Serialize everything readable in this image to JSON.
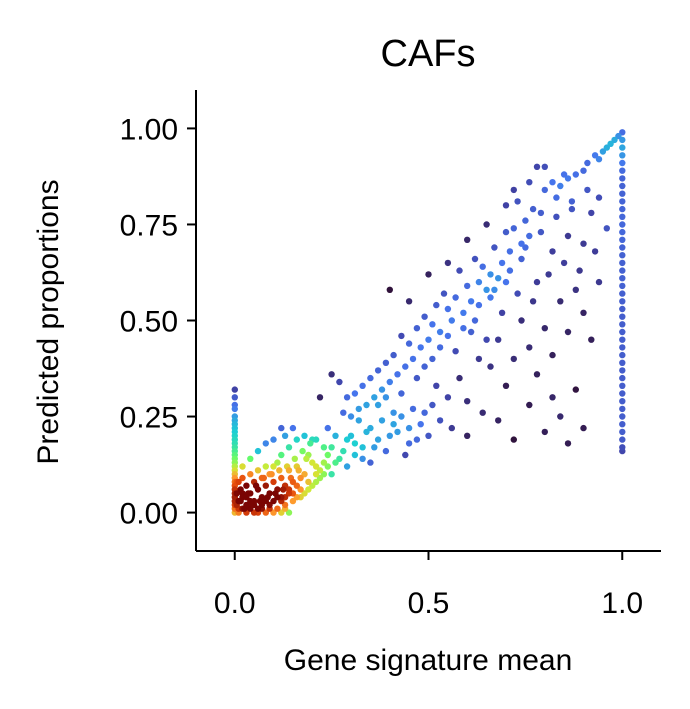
{
  "chart_data": {
    "type": "scatter",
    "title": "CAFs",
    "xlabel": "Gene signature mean",
    "ylabel": "Predicted proportions",
    "xlim": [
      -0.1,
      1.1
    ],
    "ylim": [
      -0.1,
      1.1
    ],
    "xticks": [
      {
        "value": 0.0,
        "label": "0.0"
      },
      {
        "value": 0.5,
        "label": "0.5"
      },
      {
        "value": 1.0,
        "label": "1.0"
      }
    ],
    "yticks": [
      {
        "value": 0.0,
        "label": "0.00"
      },
      {
        "value": 0.25,
        "label": "0.25"
      },
      {
        "value": 0.5,
        "label": "0.50"
      },
      {
        "value": 0.75,
        "label": "0.75"
      },
      {
        "value": 1.0,
        "label": "1.00"
      }
    ],
    "grid": false,
    "legend": "none",
    "color_encoding": "point density (turbo colormap: dark purple = low, dark red = high)",
    "colormap": [
      "#30123b",
      "#4145ab",
      "#4675ed",
      "#1bcfd4",
      "#62fc6b",
      "#d2e935",
      "#fe9b2d",
      "#e4460a",
      "#7a0403"
    ],
    "points": [
      [
        0.95,
        0.94
      ],
      [
        0.96,
        0.95
      ],
      [
        0.97,
        0.96
      ],
      [
        0.98,
        0.97
      ],
      [
        0.99,
        0.98
      ],
      [
        0.93,
        0.93
      ],
      [
        0.94,
        0.92
      ],
      [
        0.91,
        0.91
      ],
      [
        0.9,
        0.89
      ],
      [
        0.88,
        0.88
      ],
      [
        0.86,
        0.87
      ],
      [
        0.84,
        0.85
      ],
      [
        0.85,
        0.88
      ],
      [
        0.83,
        0.82
      ],
      [
        0.82,
        0.86
      ],
      [
        0.87,
        0.81
      ],
      [
        0.8,
        0.84
      ],
      [
        0.79,
        0.78
      ],
      [
        0.78,
        0.9
      ],
      [
        0.77,
        0.79
      ],
      [
        0.76,
        0.72
      ],
      [
        0.75,
        0.76
      ],
      [
        0.74,
        0.7
      ],
      [
        0.73,
        0.81
      ],
      [
        0.72,
        0.74
      ],
      [
        0.71,
        0.68
      ],
      [
        0.7,
        0.73
      ],
      [
        0.69,
        0.65
      ],
      [
        0.68,
        0.61
      ],
      [
        0.67,
        0.69
      ],
      [
        0.66,
        0.62
      ],
      [
        0.65,
        0.58
      ],
      [
        0.64,
        0.64
      ],
      [
        0.63,
        0.6
      ],
      [
        0.62,
        0.66
      ],
      [
        0.61,
        0.55
      ],
      [
        0.6,
        0.59
      ],
      [
        0.59,
        0.52
      ],
      [
        0.58,
        0.63
      ],
      [
        0.57,
        0.56
      ],
      [
        0.56,
        0.5
      ],
      [
        0.55,
        0.53
      ],
      [
        0.54,
        0.57
      ],
      [
        0.53,
        0.47
      ],
      [
        0.52,
        0.54
      ],
      [
        0.51,
        0.49
      ],
      [
        0.5,
        0.45
      ],
      [
        0.49,
        0.51
      ],
      [
        0.48,
        0.43
      ],
      [
        0.47,
        0.48
      ],
      [
        0.46,
        0.4
      ],
      [
        0.45,
        0.44
      ],
      [
        0.44,
        0.38
      ],
      [
        0.43,
        0.46
      ],
      [
        0.42,
        0.36
      ],
      [
        0.41,
        0.41
      ],
      [
        0.4,
        0.34
      ],
      [
        0.39,
        0.39
      ],
      [
        0.38,
        0.32
      ],
      [
        0.37,
        0.37
      ],
      [
        0.36,
        0.3
      ],
      [
        0.35,
        0.35
      ],
      [
        0.34,
        0.28
      ],
      [
        0.33,
        0.33
      ],
      [
        0.32,
        0.27
      ],
      [
        0.31,
        0.31
      ],
      [
        0.3,
        0.25
      ],
      [
        0.29,
        0.3
      ],
      [
        0.28,
        0.26
      ],
      [
        0.27,
        0.34
      ],
      [
        0.26,
        0.2
      ],
      [
        0.25,
        0.36
      ],
      [
        0.24,
        0.22
      ],
      [
        0.23,
        0.17
      ],
      [
        0.22,
        0.3
      ],
      [
        0.21,
        0.19
      ],
      [
        0.4,
        0.58
      ],
      [
        0.45,
        0.55
      ],
      [
        0.5,
        0.62
      ],
      [
        0.55,
        0.65
      ],
      [
        0.6,
        0.71
      ],
      [
        0.65,
        0.75
      ],
      [
        0.7,
        0.8
      ],
      [
        0.72,
        0.84
      ],
      [
        0.76,
        0.86
      ],
      [
        0.8,
        0.9
      ],
      [
        0.52,
        0.33
      ],
      [
        0.55,
        0.3
      ],
      [
        0.58,
        0.35
      ],
      [
        0.6,
        0.29
      ],
      [
        0.63,
        0.4
      ],
      [
        0.66,
        0.38
      ],
      [
        0.68,
        0.45
      ],
      [
        0.7,
        0.33
      ],
      [
        0.72,
        0.4
      ],
      [
        0.74,
        0.5
      ],
      [
        0.76,
        0.43
      ],
      [
        0.78,
        0.36
      ],
      [
        0.8,
        0.48
      ],
      [
        0.82,
        0.41
      ],
      [
        0.84,
        0.55
      ],
      [
        0.86,
        0.47
      ],
      [
        0.88,
        0.58
      ],
      [
        0.9,
        0.52
      ],
      [
        0.92,
        0.45
      ],
      [
        0.94,
        0.6
      ],
      [
        0.5,
        0.2
      ],
      [
        0.48,
        0.23
      ],
      [
        0.45,
        0.18
      ],
      [
        0.42,
        0.21
      ],
      [
        0.46,
        0.27
      ],
      [
        0.44,
        0.15
      ],
      [
        0.4,
        0.2
      ],
      [
        0.38,
        0.24
      ],
      [
        0.36,
        0.17
      ],
      [
        0.34,
        0.21
      ],
      [
        0.33,
        0.14
      ],
      [
        0.31,
        0.18
      ],
      [
        0.29,
        0.12
      ],
      [
        0.28,
        0.16
      ],
      [
        0.26,
        0.13
      ],
      [
        0.25,
        0.1
      ],
      [
        0.24,
        0.15
      ],
      [
        0.22,
        0.11
      ],
      [
        0.21,
        0.08
      ],
      [
        0.2,
        0.13
      ],
      [
        0.19,
        0.06
      ],
      [
        0.18,
        0.1
      ],
      [
        0.17,
        0.04
      ],
      [
        0.16,
        0.07
      ],
      [
        0.15,
        0.03
      ],
      [
        0.14,
        0.05
      ],
      [
        0.13,
        0.02
      ],
      [
        0.12,
        0.04
      ],
      [
        0.56,
        0.22
      ],
      [
        0.6,
        0.2
      ],
      [
        0.64,
        0.26
      ],
      [
        0.68,
        0.24
      ],
      [
        0.72,
        0.19
      ],
      [
        0.76,
        0.28
      ],
      [
        0.8,
        0.21
      ],
      [
        0.84,
        0.25
      ],
      [
        0.88,
        0.32
      ],
      [
        0.9,
        0.22
      ],
      [
        0.86,
        0.18
      ],
      [
        0.82,
        0.3
      ],
      [
        0.62,
        0.5
      ],
      [
        0.66,
        0.56
      ],
      [
        0.7,
        0.6
      ],
      [
        0.74,
        0.66
      ],
      [
        0.78,
        0.6
      ],
      [
        0.82,
        0.68
      ],
      [
        0.86,
        0.72
      ],
      [
        0.9,
        0.7
      ],
      [
        0.92,
        0.78
      ],
      [
        0.94,
        0.82
      ],
      [
        0.96,
        0.74
      ],
      [
        0.57,
        0.42
      ],
      [
        0.61,
        0.47
      ],
      [
        0.65,
        0.45
      ],
      [
        0.69,
        0.52
      ],
      [
        0.73,
        0.57
      ],
      [
        0.77,
        0.55
      ],
      [
        0.81,
        0.62
      ],
      [
        0.85,
        0.65
      ],
      [
        0.89,
        0.63
      ],
      [
        0.93,
        0.68
      ],
      [
        0.37,
        0.28
      ],
      [
        0.39,
        0.3
      ],
      [
        0.41,
        0.26
      ],
      [
        0.43,
        0.31
      ],
      [
        0.47,
        0.35
      ],
      [
        0.49,
        0.38
      ],
      [
        0.51,
        0.4
      ],
      [
        0.53,
        0.43
      ],
      [
        0.55,
        0.46
      ],
      [
        0.59,
        0.48
      ],
      [
        0.63,
        0.54
      ],
      [
        0.67,
        0.58
      ],
      [
        0.71,
        0.63
      ],
      [
        0.75,
        0.69
      ],
      [
        0.79,
        0.73
      ],
      [
        0.83,
        0.77
      ],
      [
        0.87,
        0.79
      ],
      [
        0.91,
        0.84
      ],
      [
        0.3,
        0.2
      ],
      [
        0.32,
        0.24
      ],
      [
        0.35,
        0.22
      ],
      [
        0.37,
        0.19
      ],
      [
        0.39,
        0.16
      ],
      [
        0.41,
        0.23
      ],
      [
        0.43,
        0.25
      ],
      [
        0.45,
        0.22
      ],
      [
        0.47,
        0.19
      ],
      [
        0.49,
        0.26
      ],
      [
        0.51,
        0.28
      ],
      [
        0.53,
        0.24
      ],
      [
        0.25,
        0.17
      ],
      [
        0.27,
        0.14
      ],
      [
        0.29,
        0.19
      ],
      [
        0.31,
        0.15
      ],
      [
        0.33,
        0.17
      ],
      [
        0.35,
        0.13
      ],
      [
        0.23,
        0.1
      ],
      [
        0.21,
        0.12
      ],
      [
        0.19,
        0.15
      ],
      [
        0.17,
        0.09
      ],
      [
        0.16,
        0.12
      ],
      [
        0.15,
        0.08
      ],
      [
        0.14,
        0.11
      ],
      [
        0.13,
        0.07
      ],
      [
        0.12,
        0.09
      ],
      [
        0.11,
        0.06
      ],
      [
        0.1,
        0.08
      ],
      [
        0.09,
        0.05
      ],
      [
        0.08,
        0.07
      ],
      [
        0.07,
        0.04
      ],
      [
        0.06,
        0.06
      ],
      [
        0.05,
        0.03
      ],
      [
        0.04,
        0.05
      ],
      [
        0.03,
        0.02
      ],
      [
        0.02,
        0.04
      ],
      [
        0.01,
        0.01
      ],
      [
        0.015,
        0.03
      ],
      [
        0.025,
        0.01
      ],
      [
        0.035,
        0.05
      ],
      [
        0.045,
        0.02
      ],
      [
        0.055,
        0.07
      ],
      [
        0.065,
        0.03
      ],
      [
        0.075,
        0.09
      ],
      [
        0.085,
        0.04
      ],
      [
        0.095,
        0.1
      ],
      [
        0.105,
        0.05
      ],
      [
        0.115,
        0.11
      ],
      [
        0.125,
        0.06
      ],
      [
        0.135,
        0.12
      ],
      [
        0.145,
        0.09
      ],
      [
        0.155,
        0.14
      ],
      [
        0.165,
        0.11
      ],
      [
        0.175,
        0.16
      ],
      [
        0.185,
        0.14
      ],
      [
        0.195,
        0.18
      ],
      [
        0.2,
        0.19
      ],
      [
        0.18,
        0.2
      ],
      [
        0.16,
        0.19
      ],
      [
        0.14,
        0.17
      ],
      [
        0.12,
        0.15
      ],
      [
        0.11,
        0.13
      ],
      [
        0.1,
        0.12
      ],
      [
        0.09,
        0.1
      ],
      [
        0.08,
        0.12
      ],
      [
        0.07,
        0.09
      ],
      [
        0.06,
        0.11
      ],
      [
        0.05,
        0.08
      ],
      [
        0.04,
        0.1
      ],
      [
        0.03,
        0.07
      ],
      [
        0.02,
        0.09
      ],
      [
        0.015,
        0.06
      ],
      [
        0.01,
        0.08
      ],
      [
        0.02,
        0.05
      ],
      [
        0.03,
        0.04
      ],
      [
        0.04,
        0.03
      ],
      [
        0.05,
        0.02
      ],
      [
        0.06,
        0.01
      ],
      [
        0.07,
        0.02
      ],
      [
        0.08,
        0.03
      ],
      [
        0.09,
        0.02
      ],
      [
        0.1,
        0.03
      ],
      [
        0.11,
        0.04
      ],
      [
        0.12,
        0.03
      ],
      [
        0.13,
        0.04
      ],
      [
        0.14,
        0.06
      ],
      [
        0.15,
        0.05
      ],
      [
        0.16,
        0.04
      ],
      [
        0.17,
        0.06
      ],
      [
        0.18,
        0.05
      ],
      [
        0.19,
        0.08
      ],
      [
        0.2,
        0.07
      ],
      [
        0.21,
        0.1
      ],
      [
        0.22,
        0.09
      ],
      [
        0.23,
        0.13
      ],
      [
        0.24,
        0.12
      ],
      [
        0.1,
        0.19
      ],
      [
        0.12,
        0.22
      ],
      [
        0.06,
        0.16
      ],
      [
        0.08,
        0.18
      ],
      [
        0.04,
        0.14
      ],
      [
        0.02,
        0.12
      ],
      [
        0.13,
        0.2
      ],
      [
        0.15,
        0.22
      ],
      [
        0.0,
        0.32
      ],
      [
        0.0,
        0.3
      ],
      [
        0.0,
        0.28
      ],
      [
        0.0,
        0.27
      ],
      [
        0.0,
        0.25
      ],
      [
        0.0,
        0.24
      ],
      [
        0.0,
        0.23
      ],
      [
        0.0,
        0.22
      ],
      [
        0.0,
        0.21
      ],
      [
        0.0,
        0.2
      ],
      [
        0.0,
        0.19
      ],
      [
        0.0,
        0.18
      ],
      [
        0.0,
        0.17
      ],
      [
        0.0,
        0.16
      ],
      [
        0.0,
        0.15
      ],
      [
        0.0,
        0.14
      ],
      [
        0.0,
        0.13
      ],
      [
        0.0,
        0.12
      ],
      [
        0.0,
        0.11
      ],
      [
        0.0,
        0.1
      ],
      [
        0.0,
        0.09
      ],
      [
        0.0,
        0.08
      ],
      [
        0.0,
        0.07
      ],
      [
        0.0,
        0.06
      ],
      [
        0.0,
        0.05
      ],
      [
        0.0,
        0.04
      ],
      [
        0.0,
        0.03
      ],
      [
        0.0,
        0.02
      ],
      [
        0.0,
        0.01
      ],
      [
        0.0,
        0.0
      ],
      [
        0.005,
        0.02
      ],
      [
        0.005,
        0.05
      ],
      [
        0.005,
        0.08
      ],
      [
        0.01,
        0.03
      ],
      [
        0.01,
        0.0
      ],
      [
        0.02,
        0.01
      ],
      [
        0.03,
        0.0
      ],
      [
        0.04,
        0.01
      ],
      [
        0.05,
        0.0
      ],
      [
        0.06,
        0.0
      ],
      [
        0.07,
        0.01
      ],
      [
        0.08,
        0.0
      ],
      [
        0.09,
        0.01
      ],
      [
        0.1,
        0.0
      ],
      [
        0.11,
        0.01
      ],
      [
        0.12,
        0.0
      ],
      [
        0.13,
        0.01
      ],
      [
        0.14,
        0.0
      ],
      [
        1.0,
        0.99
      ],
      [
        1.0,
        0.97
      ],
      [
        1.0,
        0.95
      ],
      [
        1.0,
        0.93
      ],
      [
        1.0,
        0.91
      ],
      [
        1.0,
        0.89
      ],
      [
        1.0,
        0.87
      ],
      [
        1.0,
        0.85
      ],
      [
        1.0,
        0.83
      ],
      [
        1.0,
        0.81
      ],
      [
        1.0,
        0.79
      ],
      [
        1.0,
        0.77
      ],
      [
        1.0,
        0.75
      ],
      [
        1.0,
        0.73
      ],
      [
        1.0,
        0.71
      ],
      [
        1.0,
        0.69
      ],
      [
        1.0,
        0.67
      ],
      [
        1.0,
        0.65
      ],
      [
        1.0,
        0.63
      ],
      [
        1.0,
        0.61
      ],
      [
        1.0,
        0.59
      ],
      [
        1.0,
        0.57
      ],
      [
        1.0,
        0.55
      ],
      [
        1.0,
        0.53
      ],
      [
        1.0,
        0.51
      ],
      [
        1.0,
        0.49
      ],
      [
        1.0,
        0.47
      ],
      [
        1.0,
        0.45
      ],
      [
        1.0,
        0.43
      ],
      [
        1.0,
        0.41
      ],
      [
        1.0,
        0.39
      ],
      [
        1.0,
        0.37
      ],
      [
        1.0,
        0.35
      ],
      [
        1.0,
        0.33
      ],
      [
        1.0,
        0.31
      ],
      [
        1.0,
        0.29
      ],
      [
        1.0,
        0.27
      ],
      [
        1.0,
        0.25
      ],
      [
        1.0,
        0.23
      ],
      [
        1.0,
        0.21
      ],
      [
        1.0,
        0.19
      ],
      [
        1.0,
        0.17
      ],
      [
        1.0,
        0.16
      ]
    ]
  }
}
